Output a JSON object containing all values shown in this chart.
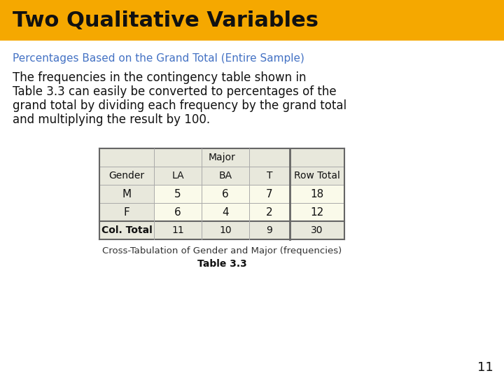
{
  "title": "Two Qualitative Variables",
  "title_bg_color": "#F5A800",
  "title_text_color": "#111111",
  "subtitle": "Percentages Based on the Grand Total (Entire Sample)",
  "subtitle_color": "#4472C4",
  "body_text_line1": "The frequencies in the contingency table shown in",
  "body_text_line2": "Table 3.3 can easily be converted to percentages of the",
  "body_text_line3": "grand total by dividing each frequency by the grand total",
  "body_text_line4": "and multiplying the result by 100.",
  "body_text_color": "#111111",
  "table_header_bg": "#E8E8DC",
  "table_data_bg": "#FAFAEA",
  "table_border_color": "#AAAAAA",
  "table_thick_border_color": "#666666",
  "col_subheaders": [
    "Gender",
    "LA",
    "BA",
    "T",
    "Row Total"
  ],
  "rows": [
    [
      "M",
      "5",
      "6",
      "7",
      "18"
    ],
    [
      "F",
      "6",
      "4",
      "2",
      "12"
    ]
  ],
  "total_row": [
    "Col. Total",
    "11",
    "10",
    "9",
    "30"
  ],
  "caption": "Cross-Tabulation of Gender and Major (frequencies)",
  "caption2": "Table 3.3",
  "bg_color": "#FFFFFF",
  "page_number": "11"
}
